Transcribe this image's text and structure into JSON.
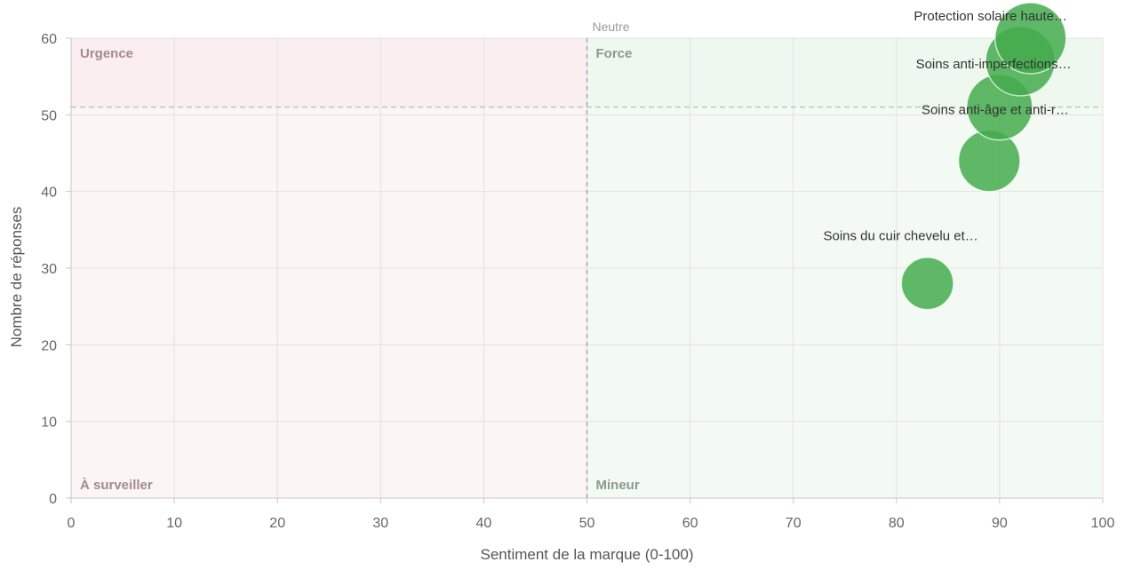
{
  "chart_data": {
    "type": "scatter",
    "title": "",
    "xlabel": "Sentiment de la marque (0-100)",
    "ylabel": "Nombre de réponses",
    "xlim": [
      0,
      100
    ],
    "ylim": [
      0,
      60
    ],
    "xticks": [
      0,
      10,
      20,
      30,
      40,
      50,
      60,
      70,
      80,
      90,
      100
    ],
    "yticks": [
      0,
      10,
      20,
      30,
      40,
      50,
      60
    ],
    "grid": true,
    "reference_lines": {
      "vertical": {
        "x": 50,
        "label": "Neutre"
      },
      "horizontal": {
        "y": 51
      }
    },
    "quadrants": [
      {
        "label": "Urgence",
        "position": "top-left",
        "color": "#fbeef0"
      },
      {
        "label": "Force",
        "position": "top-right",
        "color": "#eef8ef"
      },
      {
        "label": "À surveiller",
        "position": "bottom-left",
        "color": "#fbf5f5"
      },
      {
        "label": "Mineur",
        "position": "bottom-right",
        "color": "#f3faf3"
      }
    ],
    "points": [
      {
        "label": "Protection solaire haute…",
        "x": 93,
        "y": 60
      },
      {
        "label": "Soins anti-imperfections…",
        "x": 92,
        "y": 57
      },
      {
        "label": "Soins anti-âge et anti-r…",
        "x": 90,
        "y": 51
      },
      {
        "label": "",
        "x": 89,
        "y": 44
      },
      {
        "label": "Soins du cuir chevelu et…",
        "x": 83,
        "y": 28
      }
    ],
    "bubble_color": "#43ac4c"
  }
}
